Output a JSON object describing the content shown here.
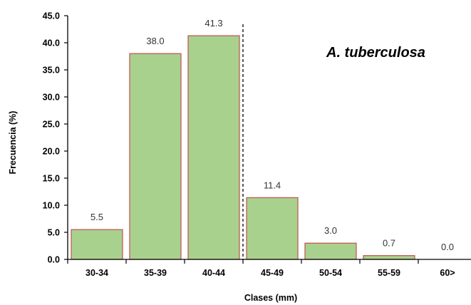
{
  "chart_data": {
    "type": "bar",
    "xlabel": "Clases (mm)",
    "ylabel": "Frecuencia (%)",
    "annotation": "A. tuberculosa",
    "categories": [
      "30-34",
      "35-39",
      "40-44",
      "45-49",
      "50-54",
      "55-59",
      "60>"
    ],
    "values": [
      5.5,
      38.0,
      41.3,
      11.4,
      3.0,
      0.7,
      0.0
    ],
    "value_labels": [
      "5.5",
      "38.0",
      "41.3",
      "11.4",
      "3.0",
      "0.7",
      "0.0"
    ],
    "ylim": [
      0,
      45
    ],
    "yticks": [
      "0.0",
      "5.0",
      "10.0",
      "15.0",
      "20.0",
      "25.0",
      "30.0",
      "35.0",
      "40.0",
      "45.0"
    ],
    "divider_after_category": "40-44",
    "grid": false,
    "legend": "none",
    "colors": {
      "bar_fill": "#a9d18e",
      "bar_stroke": "#c0504d",
      "axis": "#000000"
    }
  }
}
